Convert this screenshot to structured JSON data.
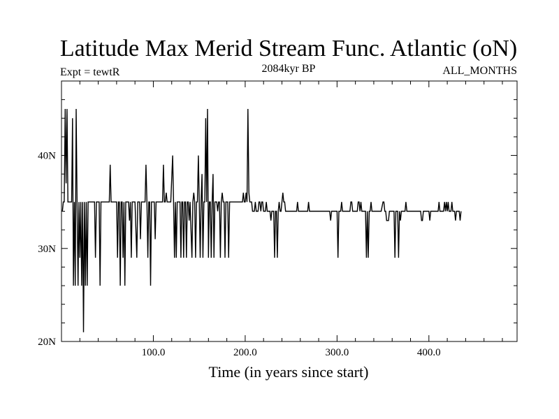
{
  "chart_data": {
    "type": "line",
    "title": "Latitude Max Merid Stream Func. Atlantic (oN)",
    "subtitle_left": "Expt = tewtR",
    "subtitle_center": "2084kyr BP",
    "subtitle_right": "ALL_MONTHS",
    "xlabel": "Time (in years since start)",
    "ylabel": "",
    "xlim": [
      0,
      496
    ],
    "ylim": [
      20,
      48
    ],
    "x_ticks": [
      100,
      200,
      300,
      400
    ],
    "x_tick_labels": [
      "100.0",
      "200.0",
      "300.0",
      "400.0"
    ],
    "y_ticks": [
      20,
      30,
      40
    ],
    "y_tick_labels": [
      "20N",
      "30N",
      "40N"
    ],
    "grid": false,
    "series": [
      {
        "name": "",
        "points": [
          [
            1,
            34
          ],
          [
            2,
            35
          ],
          [
            3,
            35
          ],
          [
            4,
            45
          ],
          [
            5,
            37
          ],
          [
            6,
            45
          ],
          [
            7,
            35
          ],
          [
            8,
            35
          ],
          [
            9,
            35
          ],
          [
            11,
            35
          ],
          [
            12,
            44
          ],
          [
            13,
            26
          ],
          [
            14,
            35
          ],
          [
            15,
            26
          ],
          [
            16,
            45
          ],
          [
            17,
            35
          ],
          [
            18,
            26
          ],
          [
            19,
            35
          ],
          [
            20,
            29
          ],
          [
            21,
            35
          ],
          [
            22,
            26
          ],
          [
            23,
            35
          ],
          [
            24,
            21
          ],
          [
            25,
            35
          ],
          [
            26,
            26
          ],
          [
            27,
            35
          ],
          [
            28,
            26
          ],
          [
            29,
            35
          ],
          [
            32,
            35
          ],
          [
            33,
            35
          ],
          [
            34,
            35
          ],
          [
            36,
            35
          ],
          [
            37,
            29
          ],
          [
            38,
            35
          ],
          [
            39,
            35
          ],
          [
            41,
            35
          ],
          [
            42,
            26
          ],
          [
            43,
            35
          ],
          [
            45,
            35
          ],
          [
            48,
            35
          ],
          [
            50,
            35
          ],
          [
            52,
            35
          ],
          [
            53,
            39
          ],
          [
            54,
            35
          ],
          [
            57,
            35
          ],
          [
            60,
            35
          ],
          [
            61,
            29
          ],
          [
            62,
            35
          ],
          [
            63,
            35
          ],
          [
            64,
            26
          ],
          [
            65,
            35
          ],
          [
            66,
            35
          ],
          [
            67,
            29
          ],
          [
            68,
            35
          ],
          [
            69,
            26
          ],
          [
            70,
            35
          ],
          [
            71,
            35
          ],
          [
            72,
            35
          ],
          [
            73,
            35
          ],
          [
            74,
            33
          ],
          [
            75,
            35
          ],
          [
            76,
            29
          ],
          [
            77,
            35
          ],
          [
            79,
            35
          ],
          [
            80,
            35
          ],
          [
            82,
            29
          ],
          [
            83,
            35
          ],
          [
            84,
            35
          ],
          [
            85,
            35
          ],
          [
            86,
            31
          ],
          [
            87,
            35
          ],
          [
            88,
            35
          ],
          [
            90,
            35
          ],
          [
            91,
            35
          ],
          [
            92,
            39
          ],
          [
            93,
            35
          ],
          [
            94,
            29
          ],
          [
            95,
            35
          ],
          [
            96,
            35
          ],
          [
            97,
            26
          ],
          [
            98,
            35
          ],
          [
            99,
            35
          ],
          [
            100,
            35
          ],
          [
            101,
            35
          ],
          [
            102,
            31
          ],
          [
            103,
            35
          ],
          [
            106,
            35
          ],
          [
            109,
            35
          ],
          [
            110,
            35
          ],
          [
            111,
            39
          ],
          [
            112,
            35
          ],
          [
            113,
            35
          ],
          [
            114,
            36
          ],
          [
            115,
            35
          ],
          [
            118,
            35
          ],
          [
            119,
            35
          ],
          [
            121,
            40
          ],
          [
            122,
            35
          ],
          [
            123,
            29
          ],
          [
            124,
            35
          ],
          [
            125,
            29
          ],
          [
            126,
            35
          ],
          [
            129,
            35
          ],
          [
            130,
            29
          ],
          [
            131,
            35
          ],
          [
            132,
            35
          ],
          [
            133,
            29
          ],
          [
            134,
            35
          ],
          [
            135,
            35
          ],
          [
            136,
            29
          ],
          [
            137,
            35
          ],
          [
            138,
            35
          ],
          [
            139,
            33
          ],
          [
            140,
            35
          ],
          [
            142,
            29
          ],
          [
            143,
            35
          ],
          [
            144,
            36
          ],
          [
            145,
            35
          ],
          [
            146,
            29
          ],
          [
            147,
            35
          ],
          [
            148,
            35
          ],
          [
            149,
            40
          ],
          [
            150,
            35
          ],
          [
            151,
            29
          ],
          [
            152,
            35
          ],
          [
            153,
            38
          ],
          [
            154,
            29
          ],
          [
            155,
            35
          ],
          [
            156,
            35
          ],
          [
            157,
            44
          ],
          [
            158,
            35
          ],
          [
            159,
            45
          ],
          [
            160,
            29
          ],
          [
            161,
            35
          ],
          [
            162,
            35
          ],
          [
            163,
            29
          ],
          [
            164,
            35
          ],
          [
            165,
            38
          ],
          [
            166,
            29
          ],
          [
            167,
            35
          ],
          [
            169,
            35
          ],
          [
            170,
            34
          ],
          [
            171,
            35
          ],
          [
            172,
            35
          ],
          [
            173,
            29
          ],
          [
            174,
            35
          ],
          [
            175,
            36
          ],
          [
            176,
            35
          ],
          [
            177,
            35
          ],
          [
            178,
            29
          ],
          [
            179,
            35
          ],
          [
            181,
            35
          ],
          [
            182,
            29
          ],
          [
            183,
            35
          ],
          [
            188,
            35
          ],
          [
            192,
            35
          ],
          [
            195,
            35
          ],
          [
            197,
            35
          ],
          [
            198,
            36
          ],
          [
            199,
            35
          ],
          [
            200,
            35
          ],
          [
            201,
            36
          ],
          [
            202,
            35
          ],
          [
            203,
            45
          ],
          [
            204,
            36
          ],
          [
            205,
            35
          ],
          [
            207,
            35
          ],
          [
            208,
            34
          ],
          [
            209,
            34
          ],
          [
            210,
            34
          ],
          [
            211,
            35
          ],
          [
            212,
            34
          ],
          [
            213,
            34
          ],
          [
            214,
            34
          ],
          [
            215,
            35
          ],
          [
            216,
            35
          ],
          [
            217,
            34
          ],
          [
            218,
            35
          ],
          [
            219,
            35
          ],
          [
            220,
            34
          ],
          [
            221,
            34
          ],
          [
            222,
            34
          ],
          [
            223,
            35
          ],
          [
            224,
            34
          ],
          [
            225,
            34
          ],
          [
            226,
            34
          ],
          [
            227,
            34
          ],
          [
            228,
            33
          ],
          [
            229,
            34
          ],
          [
            230,
            34
          ],
          [
            231,
            34
          ],
          [
            232,
            29
          ],
          [
            233,
            34
          ],
          [
            234,
            34
          ],
          [
            235,
            29
          ],
          [
            236,
            34
          ],
          [
            237,
            35
          ],
          [
            238,
            34
          ],
          [
            239,
            34
          ],
          [
            240,
            35
          ],
          [
            241,
            36
          ],
          [
            242,
            35
          ],
          [
            243,
            35
          ],
          [
            244,
            34
          ],
          [
            246,
            34
          ],
          [
            256,
            34
          ],
          [
            257,
            35
          ],
          [
            258,
            34
          ],
          [
            260,
            34
          ],
          [
            265,
            34
          ],
          [
            268,
            34
          ],
          [
            269,
            35
          ],
          [
            270,
            34
          ],
          [
            280,
            34
          ],
          [
            282,
            34
          ],
          [
            285,
            34
          ],
          [
            292,
            34
          ],
          [
            293,
            33
          ],
          [
            294,
            34
          ],
          [
            295,
            34
          ],
          [
            300,
            34
          ],
          [
            301,
            29
          ],
          [
            302,
            34
          ],
          [
            303,
            34
          ],
          [
            304,
            34
          ],
          [
            305,
            35
          ],
          [
            306,
            34
          ],
          [
            309,
            34
          ],
          [
            314,
            34
          ],
          [
            315,
            35
          ],
          [
            316,
            35
          ],
          [
            317,
            34
          ],
          [
            318,
            34
          ],
          [
            322,
            34
          ],
          [
            323,
            35
          ],
          [
            324,
            35
          ],
          [
            325,
            34
          ],
          [
            326,
            35
          ],
          [
            327,
            34
          ],
          [
            330,
            34
          ],
          [
            331,
            34
          ],
          [
            332,
            29
          ],
          [
            333,
            34
          ],
          [
            334,
            29
          ],
          [
            335,
            34
          ],
          [
            336,
            34
          ],
          [
            337,
            35
          ],
          [
            338,
            34
          ],
          [
            340,
            34
          ],
          [
            345,
            34
          ],
          [
            348,
            34
          ],
          [
            350,
            35
          ],
          [
            351,
            35
          ],
          [
            352,
            34
          ],
          [
            353,
            34
          ],
          [
            354,
            33
          ],
          [
            355,
            33
          ],
          [
            356,
            33
          ],
          [
            357,
            34
          ],
          [
            359,
            34
          ],
          [
            362,
            34
          ],
          [
            363,
            29
          ],
          [
            364,
            34
          ],
          [
            365,
            34
          ],
          [
            366,
            34
          ],
          [
            367,
            29
          ],
          [
            368,
            34
          ],
          [
            369,
            33
          ],
          [
            370,
            34
          ],
          [
            372,
            34
          ],
          [
            374,
            34
          ],
          [
            375,
            35
          ],
          [
            376,
            34
          ],
          [
            377,
            34
          ],
          [
            379,
            34
          ],
          [
            382,
            34
          ],
          [
            386,
            34
          ],
          [
            391,
            34
          ],
          [
            392,
            33
          ],
          [
            393,
            33
          ],
          [
            394,
            34
          ],
          [
            400,
            34
          ],
          [
            401,
            33
          ],
          [
            402,
            34
          ],
          [
            404,
            34
          ],
          [
            410,
            34
          ],
          [
            411,
            35
          ],
          [
            412,
            34
          ],
          [
            416,
            34
          ],
          [
            417,
            35
          ],
          [
            418,
            34
          ],
          [
            419,
            35
          ],
          [
            420,
            34
          ],
          [
            421,
            35
          ],
          [
            422,
            34
          ],
          [
            424,
            34
          ],
          [
            425,
            35
          ],
          [
            426,
            34
          ],
          [
            428,
            34
          ],
          [
            429,
            33
          ],
          [
            430,
            34
          ],
          [
            431,
            34
          ],
          [
            433,
            34
          ],
          [
            434,
            33
          ],
          [
            435,
            34
          ]
        ]
      }
    ]
  }
}
